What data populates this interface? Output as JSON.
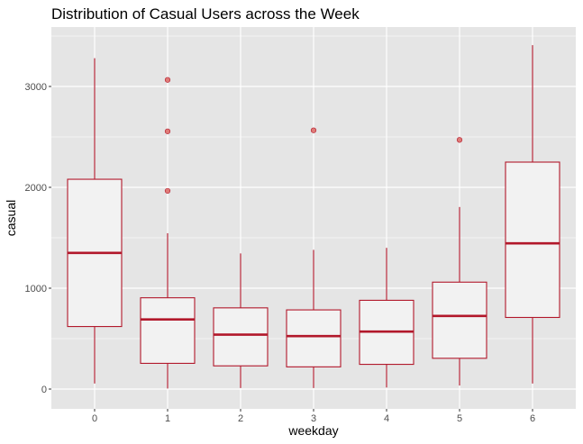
{
  "chart_data": {
    "type": "boxplot",
    "title": "Distribution of Casual Users across the Week",
    "xlabel": "weekday",
    "ylabel": "casual",
    "categories": [
      "0",
      "1",
      "2",
      "3",
      "4",
      "5",
      "6"
    ],
    "y_ticks": [
      0,
      1000,
      2000,
      3000
    ],
    "ylim": [
      -200,
      3500
    ],
    "grid": true,
    "colors": {
      "panel": "#e5e5e5",
      "grid": "#ffffff",
      "box_stroke": "#b2182b",
      "box_fill": "#f2f2f2",
      "outlier": "#d9534f"
    },
    "boxes": [
      {
        "category": "0",
        "min": 55,
        "q1": 620,
        "median": 1350,
        "q3": 2080,
        "max": 3280,
        "outliers": []
      },
      {
        "category": "1",
        "min": 5,
        "q1": 255,
        "median": 690,
        "q3": 905,
        "max": 1545,
        "outliers": [
          1965,
          2555,
          3065
        ]
      },
      {
        "category": "2",
        "min": 10,
        "q1": 230,
        "median": 540,
        "q3": 805,
        "max": 1345,
        "outliers": []
      },
      {
        "category": "3",
        "min": 10,
        "q1": 220,
        "median": 525,
        "q3": 785,
        "max": 1380,
        "outliers": [
          2565
        ]
      },
      {
        "category": "4",
        "min": 15,
        "q1": 245,
        "median": 570,
        "q3": 880,
        "max": 1400,
        "outliers": []
      },
      {
        "category": "5",
        "min": 35,
        "q1": 305,
        "median": 725,
        "q3": 1060,
        "max": 1805,
        "outliers": [
          2470
        ]
      },
      {
        "category": "6",
        "min": 55,
        "q1": 710,
        "median": 1445,
        "q3": 2250,
        "max": 3410,
        "outliers": []
      }
    ]
  }
}
